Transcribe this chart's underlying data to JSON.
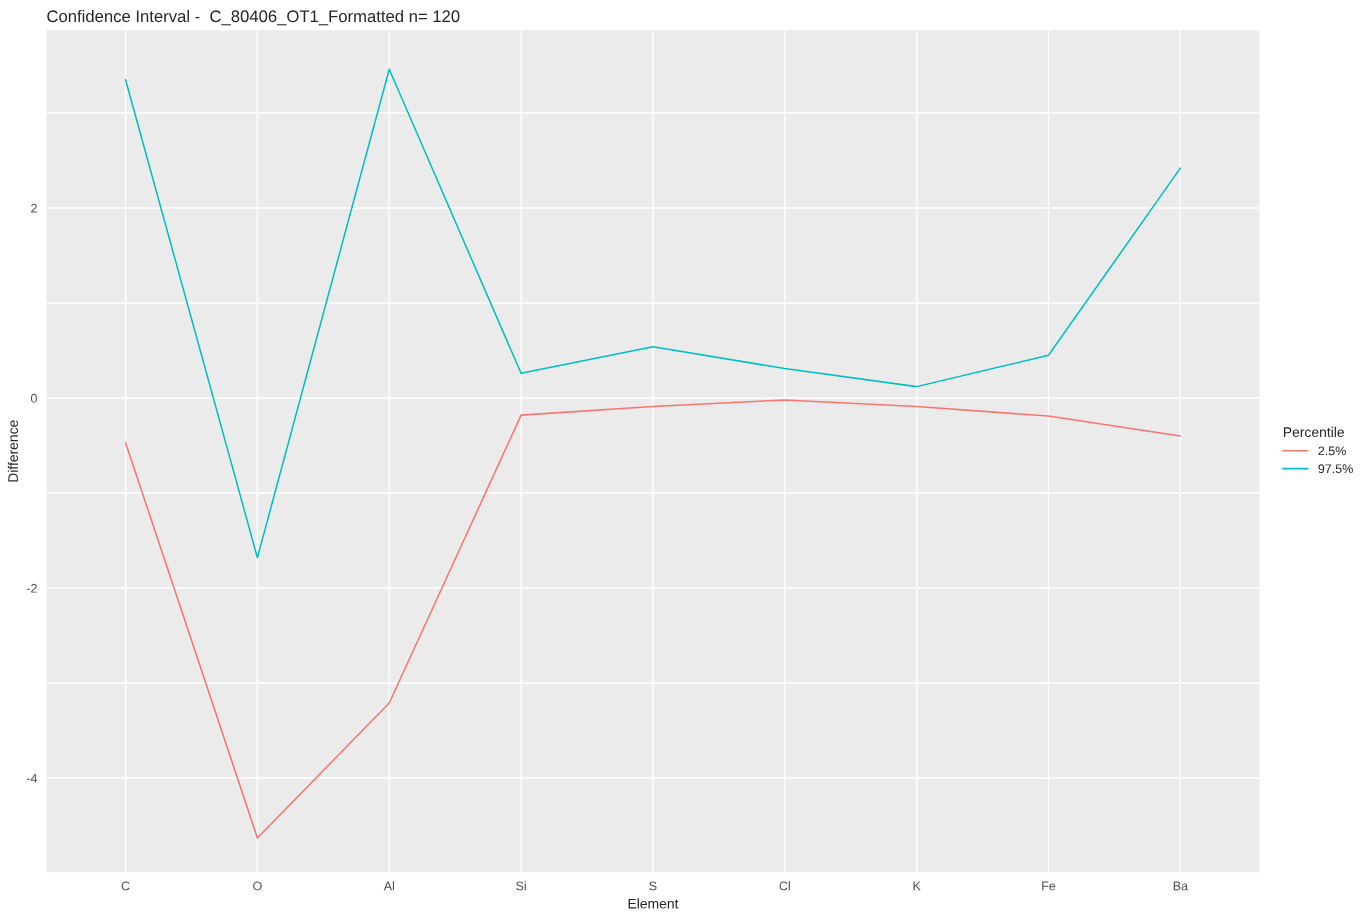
{
  "chart_data": {
    "type": "line",
    "title": "Confidence Interval -  C_80406_OT1_Formatted n= 120",
    "xlabel": "Element",
    "ylabel": "Difference",
    "legend_title": "Percentile",
    "categories": [
      "C",
      "O",
      "Al",
      "Si",
      "S",
      "Cl",
      "K",
      "Fe",
      "Ba"
    ],
    "series": [
      {
        "name": "2.5%",
        "color": "#f8766d",
        "values": [
          -0.47,
          -4.63,
          -3.21,
          -0.18,
          -0.09,
          -0.02,
          -0.09,
          -0.19,
          -0.4
        ]
      },
      {
        "name": "97.5%",
        "color": "#00bfc4",
        "values": [
          3.35,
          -1.68,
          3.46,
          0.26,
          0.54,
          0.31,
          0.12,
          0.45,
          2.42
        ]
      }
    ],
    "ylim": [
      -4.99,
      3.87
    ],
    "yticks": [
      -4,
      {
        "value": -3,
        "label": null
      },
      -2,
      {
        "value": -1,
        "label": null
      },
      0,
      {
        "value": 1,
        "label": null
      },
      2,
      {
        "value": 3,
        "label": null
      }
    ],
    "grid": true,
    "legend": "right",
    "marker": "none",
    "line_style": "solid"
  }
}
